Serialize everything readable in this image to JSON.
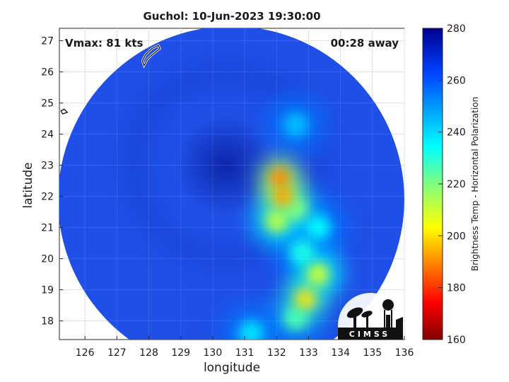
{
  "chart_data": {
    "type": "heatmap",
    "title": "Guchol: 10-Jun-2023 19:30:00",
    "annotations": {
      "vmax": "Vmax: 81 kts",
      "time_away": "00:28 away"
    },
    "xlabel": "longitude",
    "ylabel": "latitude",
    "xlim": [
      125.2,
      136
    ],
    "ylim": [
      17.4,
      27.4
    ],
    "xticks": [
      126,
      127,
      128,
      129,
      130,
      131,
      132,
      133,
      134,
      135,
      136
    ],
    "yticks": [
      18,
      19,
      20,
      21,
      22,
      23,
      24,
      25,
      26,
      27
    ],
    "grid": true,
    "colorbar": {
      "label": "Brightness Temp - Horizontal Polarization",
      "range": [
        160,
        280
      ],
      "ticks": [
        160,
        180,
        200,
        220,
        240,
        260,
        280
      ],
      "colormap": "jet"
    },
    "field_points": [
      {
        "lon": 130.4,
        "lat": 23.0,
        "value": 272
      },
      {
        "lon": 132.1,
        "lat": 22.6,
        "value": 190
      },
      {
        "lon": 132.2,
        "lat": 22.0,
        "value": 193
      },
      {
        "lon": 132.0,
        "lat": 21.2,
        "value": 212
      },
      {
        "lon": 132.6,
        "lat": 21.6,
        "value": 220
      },
      {
        "lon": 133.3,
        "lat": 21.0,
        "value": 235
      },
      {
        "lon": 132.8,
        "lat": 20.2,
        "value": 232
      },
      {
        "lon": 133.3,
        "lat": 19.5,
        "value": 210
      },
      {
        "lon": 132.9,
        "lat": 18.7,
        "value": 200
      },
      {
        "lon": 132.6,
        "lat": 24.3,
        "value": 244
      },
      {
        "lon": 132.6,
        "lat": 18.1,
        "value": 226
      },
      {
        "lon": 131.2,
        "lat": 17.6,
        "value": 238
      }
    ],
    "coastlines": [
      {
        "name": "island-north",
        "points": [
          [
            127.8,
            26.35
          ],
          [
            127.9,
            26.55
          ],
          [
            128.1,
            26.75
          ],
          [
            128.3,
            26.85
          ],
          [
            128.35,
            26.75
          ],
          [
            128.1,
            26.55
          ],
          [
            127.95,
            26.4
          ],
          [
            127.85,
            26.2
          ]
        ]
      },
      {
        "name": "island-west",
        "points": [
          [
            125.25,
            24.75
          ],
          [
            125.35,
            24.8
          ],
          [
            125.45,
            24.7
          ],
          [
            125.3,
            24.65
          ]
        ]
      }
    ],
    "logo": "CIMSS"
  }
}
